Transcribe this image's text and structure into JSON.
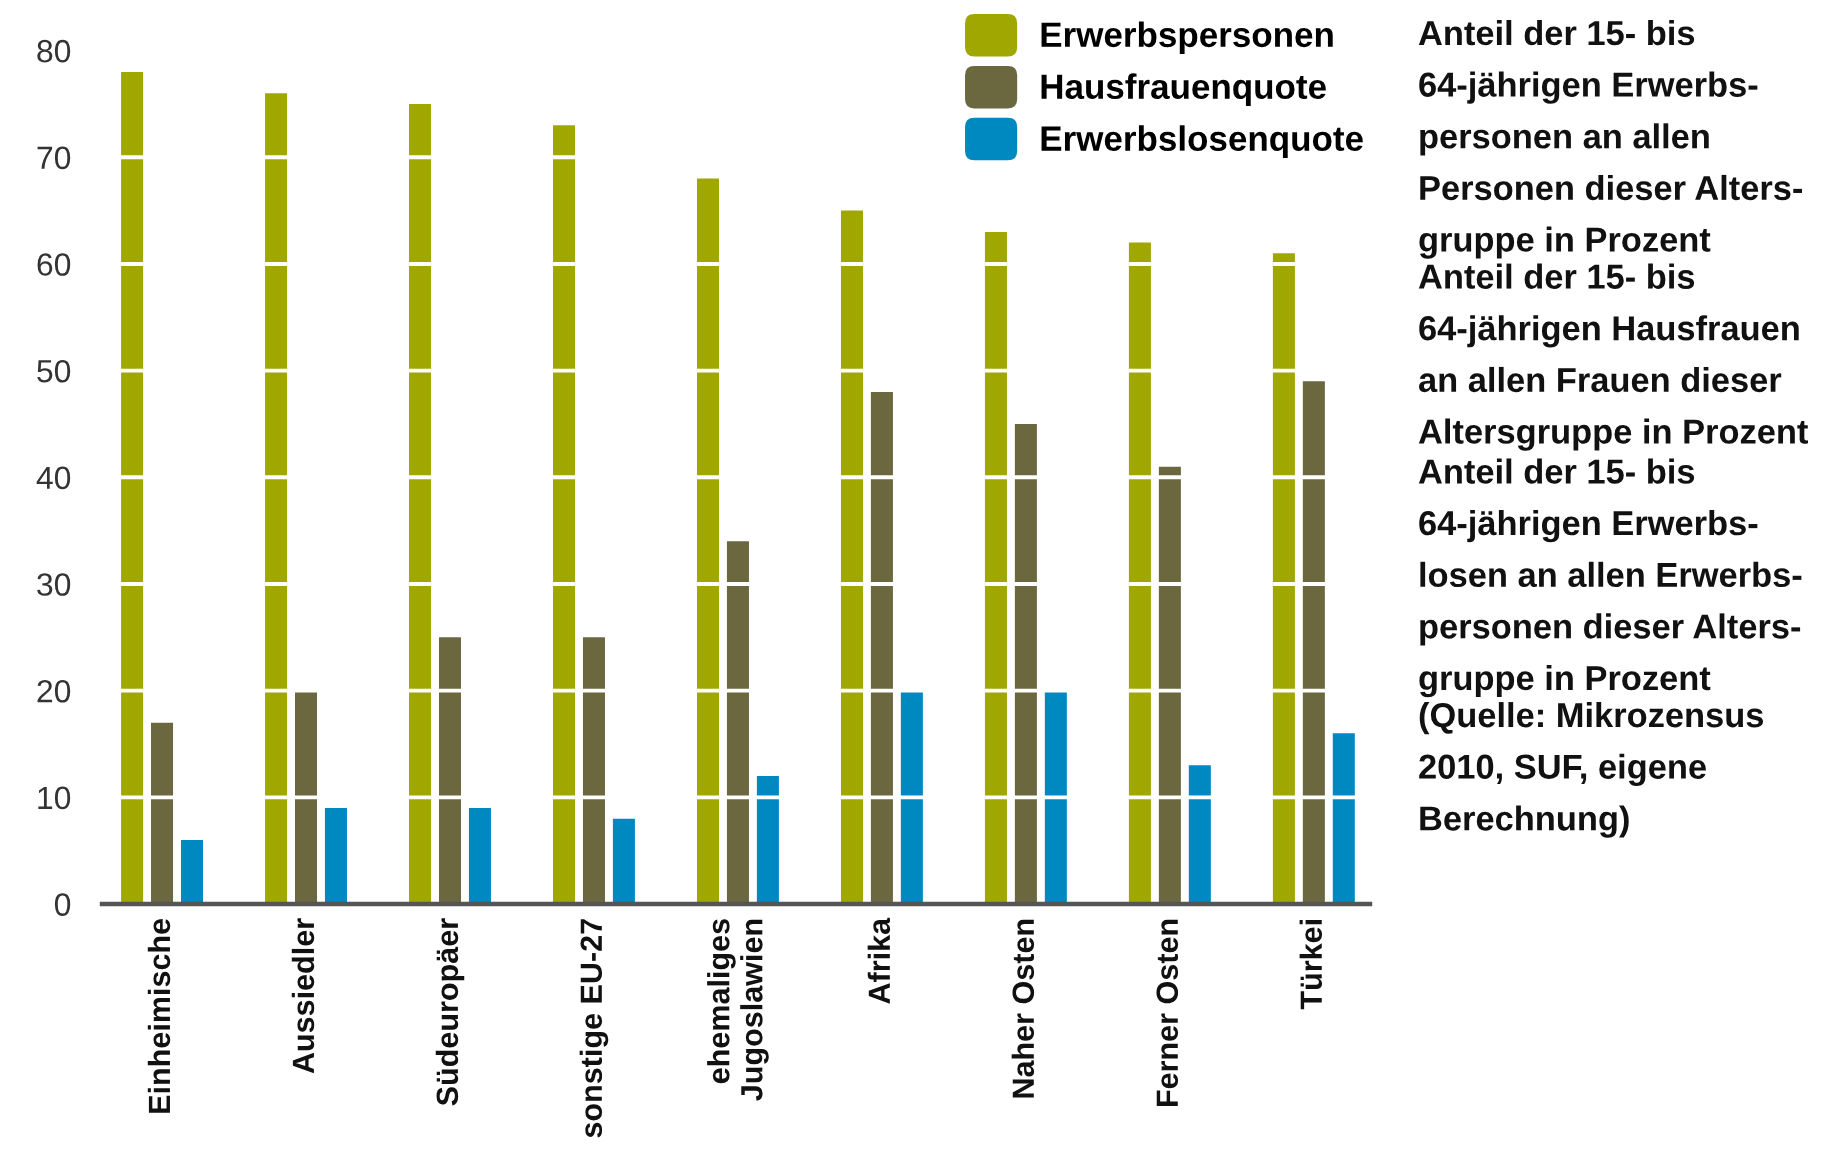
{
  "chart_data": {
    "type": "bar",
    "categories": [
      "Einheimische",
      "Aussiedler",
      "Südeuropäer",
      "sonstige EU-27",
      "ehemaliges\nJugoslawien",
      "Afrika",
      "Naher Osten",
      "Ferner Osten",
      "Türkei"
    ],
    "series": [
      {
        "name": "Erwerbspersonen",
        "color": "#a0a800",
        "values": [
          78,
          76,
          75,
          73,
          68,
          65,
          63,
          62,
          61
        ]
      },
      {
        "name": "Hausfrauenquote",
        "color": "#6b673e",
        "values": [
          17,
          20,
          25,
          25,
          34,
          48,
          45,
          41,
          49
        ]
      },
      {
        "name": "Erwerbslosenquote",
        "color": "#0088c0",
        "values": [
          6,
          9,
          9,
          8,
          12,
          20,
          20,
          13,
          16
        ]
      }
    ],
    "ylim": [
      0,
      80
    ],
    "yticks": [
      0,
      10,
      20,
      30,
      40,
      50,
      60,
      70,
      80
    ],
    "grid": "y",
    "legend": "top right",
    "annotations": [
      "Anteil der 15- bis\n64-jährigen Erwerbs-\npersonen an allen\nPersonen dieser Alters-\ngruppe in Prozent",
      "Anteil der 15- bis\n64-jährigen Hausfrauen\nan allen Frauen dieser\nAltersgruppe in Prozent",
      "Anteil der 15- bis\n64-jährigen Erwerbs-\nlosen an allen Erwerbs-\npersonen dieser Alters-\ngruppe in Prozent",
      "(Quelle: Mikrozensus\n2010, SUF, eigene\nBerechnung)"
    ]
  }
}
